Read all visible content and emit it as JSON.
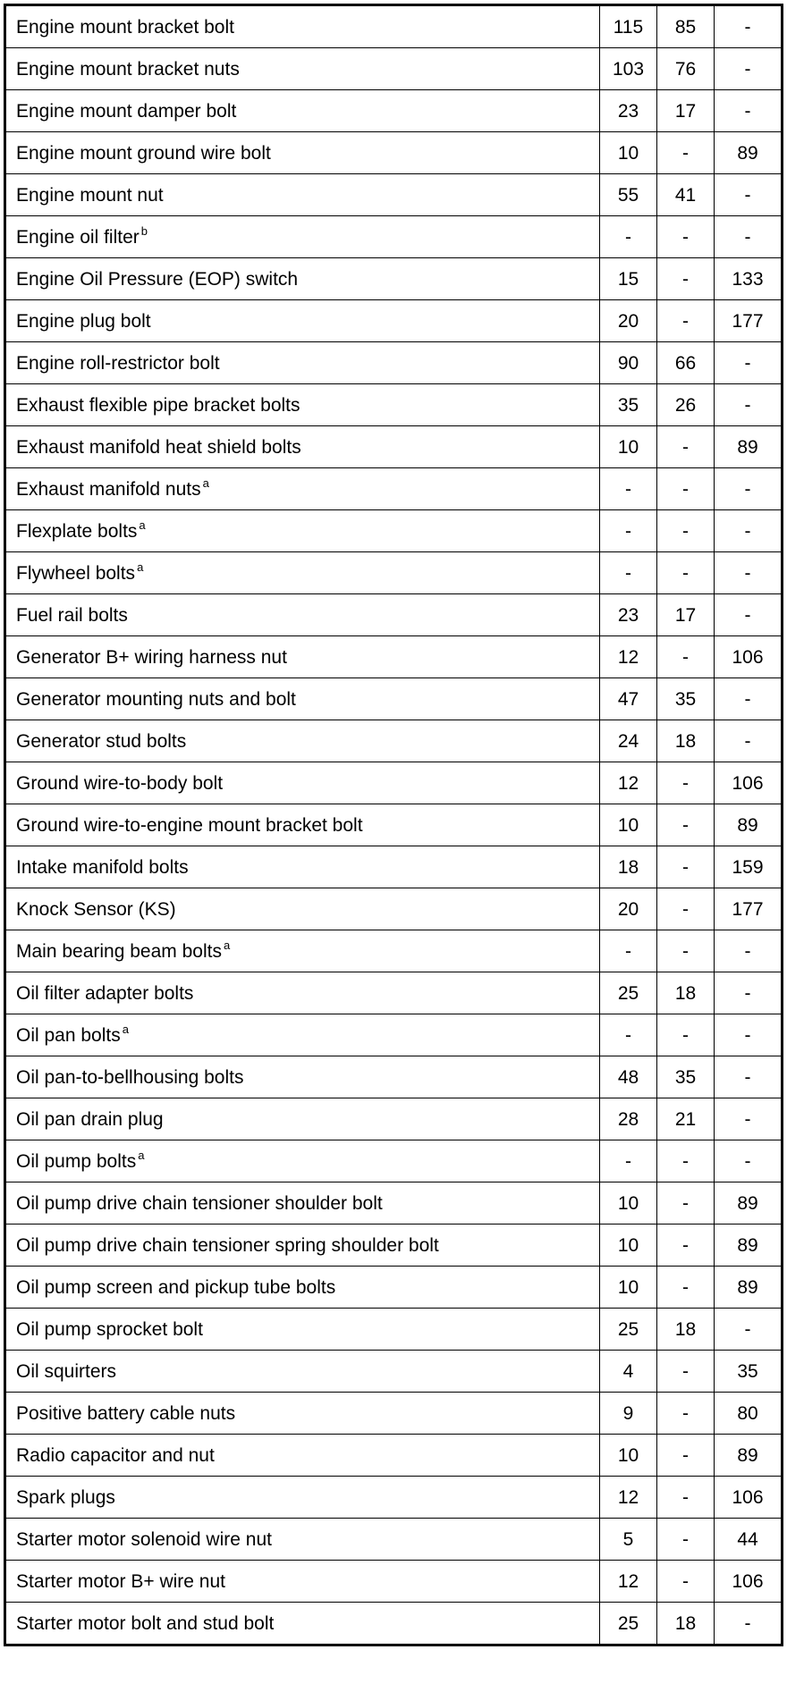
{
  "rows": [
    {
      "name": "Engine mount bracket bolt",
      "note": "",
      "nm": "115",
      "lbft": "85",
      "lbin": "-"
    },
    {
      "name": "Engine mount bracket nuts",
      "note": "",
      "nm": "103",
      "lbft": "76",
      "lbin": "-"
    },
    {
      "name": "Engine mount damper bolt",
      "note": "",
      "nm": "23",
      "lbft": "17",
      "lbin": "-"
    },
    {
      "name": "Engine mount ground wire bolt",
      "note": "",
      "nm": "10",
      "lbft": "-",
      "lbin": "89"
    },
    {
      "name": "Engine mount nut",
      "note": "",
      "nm": "55",
      "lbft": "41",
      "lbin": "-"
    },
    {
      "name": "Engine oil filter",
      "note": "b",
      "nm": "-",
      "lbft": "-",
      "lbin": "-"
    },
    {
      "name": "Engine Oil Pressure (EOP) switch",
      "note": "",
      "nm": "15",
      "lbft": "-",
      "lbin": "133"
    },
    {
      "name": "Engine plug bolt",
      "note": "",
      "nm": "20",
      "lbft": "-",
      "lbin": "177"
    },
    {
      "name": "Engine roll-restrictor bolt",
      "note": "",
      "nm": "90",
      "lbft": "66",
      "lbin": "-"
    },
    {
      "name": "Exhaust flexible pipe bracket bolts",
      "note": "",
      "nm": "35",
      "lbft": "26",
      "lbin": "-"
    },
    {
      "name": "Exhaust manifold heat shield bolts",
      "note": "",
      "nm": "10",
      "lbft": "-",
      "lbin": "89"
    },
    {
      "name": "Exhaust manifold nuts",
      "note": "a",
      "nm": "-",
      "lbft": "-",
      "lbin": "-"
    },
    {
      "name": "Flexplate bolts",
      "note": "a",
      "nm": "-",
      "lbft": "-",
      "lbin": "-"
    },
    {
      "name": "Flywheel bolts",
      "note": "a",
      "nm": "-",
      "lbft": "-",
      "lbin": "-"
    },
    {
      "name": "Fuel rail bolts",
      "note": "",
      "nm": "23",
      "lbft": "17",
      "lbin": "-"
    },
    {
      "name": "Generator B+ wiring harness nut",
      "note": "",
      "nm": "12",
      "lbft": "-",
      "lbin": "106"
    },
    {
      "name": "Generator mounting nuts and bolt",
      "note": "",
      "nm": "47",
      "lbft": "35",
      "lbin": "-"
    },
    {
      "name": "Generator stud bolts",
      "note": "",
      "nm": "24",
      "lbft": "18",
      "lbin": "-"
    },
    {
      "name": "Ground wire-to-body bolt",
      "note": "",
      "nm": "12",
      "lbft": "-",
      "lbin": "106"
    },
    {
      "name": "Ground wire-to-engine mount bracket bolt",
      "note": "",
      "nm": "10",
      "lbft": "-",
      "lbin": "89"
    },
    {
      "name": "Intake manifold bolts",
      "note": "",
      "nm": "18",
      "lbft": "-",
      "lbin": "159"
    },
    {
      "name": "Knock Sensor (KS)",
      "note": "",
      "nm": "20",
      "lbft": "-",
      "lbin": "177"
    },
    {
      "name": "Main bearing beam bolts",
      "note": "a",
      "nm": "-",
      "lbft": "-",
      "lbin": "-"
    },
    {
      "name": "Oil filter adapter bolts",
      "note": "",
      "nm": "25",
      "lbft": "18",
      "lbin": "-"
    },
    {
      "name": "Oil pan bolts",
      "note": "a",
      "nm": "-",
      "lbft": "-",
      "lbin": "-"
    },
    {
      "name": "Oil pan-to-bellhousing bolts",
      "note": "",
      "nm": "48",
      "lbft": "35",
      "lbin": "-"
    },
    {
      "name": "Oil pan drain plug",
      "note": "",
      "nm": "28",
      "lbft": "21",
      "lbin": "-"
    },
    {
      "name": "Oil pump bolts",
      "note": "a",
      "nm": "-",
      "lbft": "-",
      "lbin": "-"
    },
    {
      "name": "Oil pump drive chain tensioner shoulder bolt",
      "note": "",
      "nm": "10",
      "lbft": "-",
      "lbin": "89"
    },
    {
      "name": "Oil pump drive chain tensioner spring shoulder bolt",
      "note": "",
      "nm": "10",
      "lbft": "-",
      "lbin": "89"
    },
    {
      "name": "Oil pump screen and pickup tube bolts",
      "note": "",
      "nm": "10",
      "lbft": "-",
      "lbin": "89"
    },
    {
      "name": "Oil pump sprocket bolt",
      "note": "",
      "nm": "25",
      "lbft": "18",
      "lbin": "-"
    },
    {
      "name": "Oil squirters",
      "note": "",
      "nm": "4",
      "lbft": "-",
      "lbin": "35"
    },
    {
      "name": "Positive battery cable nuts",
      "note": "",
      "nm": "9",
      "lbft": "-",
      "lbin": "80"
    },
    {
      "name": "Radio capacitor and nut",
      "note": "",
      "nm": "10",
      "lbft": "-",
      "lbin": "89"
    },
    {
      "name": "Spark plugs",
      "note": "",
      "nm": "12",
      "lbft": "-",
      "lbin": "106"
    },
    {
      "name": "Starter motor solenoid wire nut",
      "note": "",
      "nm": "5",
      "lbft": "-",
      "lbin": "44"
    },
    {
      "name": "Starter motor B+ wire nut",
      "note": "",
      "nm": "12",
      "lbft": "-",
      "lbin": "106"
    },
    {
      "name": "Starter motor bolt and stud bolt",
      "note": "",
      "nm": "25",
      "lbft": "18",
      "lbin": "-"
    }
  ]
}
